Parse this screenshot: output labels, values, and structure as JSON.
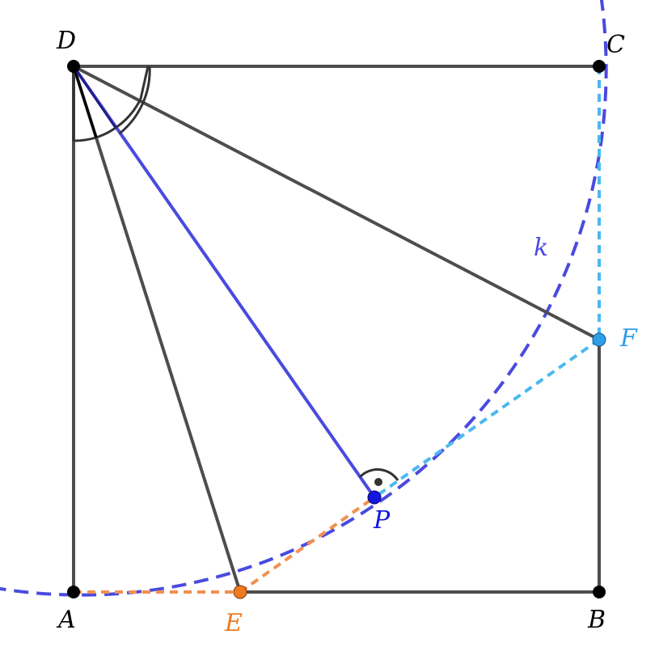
{
  "figure": {
    "labels": {
      "D": "D",
      "C": "C",
      "A": "A",
      "B": "B",
      "E": "E",
      "F": "F",
      "P": "P",
      "k": "k"
    },
    "colors": {
      "square": "#4d4d4d",
      "circle_k": "#4a4ae0",
      "segment_DP": "#4a4ae0",
      "point_P": "#1515e0",
      "point_E": "#f07a20",
      "segment_AE_EP": "#f29050",
      "point_F": "#2f9ee8",
      "segment_CF_FP": "#4cb8ef",
      "angle_marks": "#333333",
      "vertex_points": "#000000"
    }
  }
}
